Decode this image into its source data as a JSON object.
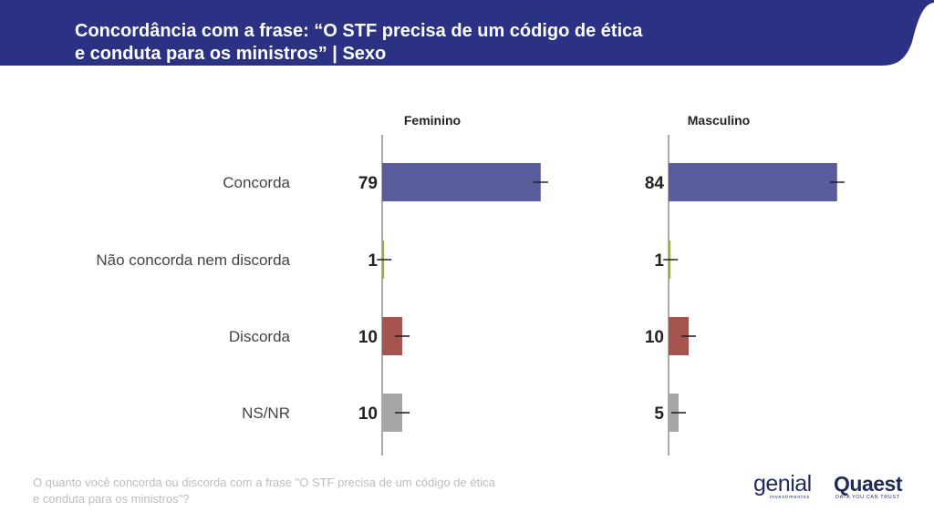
{
  "header": {
    "title_line1": "Concordância com a frase: “O STF precisa de um código de ética",
    "title_line2": "e conduta para os ministros” | Sexo"
  },
  "footnote": {
    "line1": "O quanto você concorda ou discorda com a frase \"O STF precisa de um código de ética",
    "line2": "e conduta para os ministros\"?"
  },
  "logos": {
    "genial": "genial",
    "genial_sub": "investimentos",
    "quaest": "Quaest",
    "quaest_sub": "DATA YOU CAN TRUST"
  },
  "colors": {
    "header_bg": "#2b3284",
    "concorda": "#585c9d",
    "neutro": "#9fb13d",
    "discorda": "#a5534f",
    "nsnr": "#a6a6a6",
    "axis": "#555555"
  },
  "chart_data": {
    "type": "bar",
    "orientation": "horizontal",
    "title": "Concordância com a frase: “O STF precisa de um código de ética e conduta para os ministros” | Sexo",
    "categories": [
      "Concorda",
      "Não concorda nem discorda",
      "Discorda",
      "NS/NR"
    ],
    "series": [
      {
        "name": "Feminino",
        "values": [
          79,
          1,
          10,
          10
        ]
      },
      {
        "name": "Masculino",
        "values": [
          84,
          1,
          10,
          5
        ]
      }
    ],
    "xlim": [
      0,
      100
    ],
    "error_bars": true,
    "unit": "%"
  }
}
